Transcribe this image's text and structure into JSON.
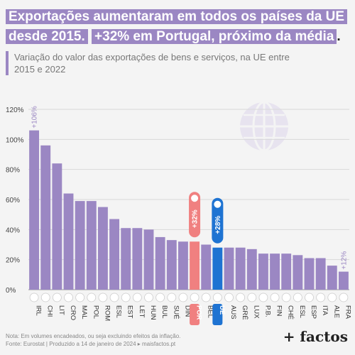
{
  "title_part1": "Exportações aumentaram em todos os países da UE desde 2015.",
  "title_part2": "+32% em Portugal, próximo da média",
  "title_end": ".",
  "subtitle": "Variação do valor das exportações de bens e serviços, na UE entre 2015 e 2022",
  "footer_line1": "Nota: Em volumes encadeados, ou seja excluindo efeitos da inflação.",
  "footer_line2": "Fonte: Eurostat  |  Produzido a 14 de janeiro de 2024 ▸ maisfactos.pt",
  "brand": "+ factos",
  "colors": {
    "bar": "#9b87c3",
    "portugal": "#f08080",
    "eu": "#1e73d2",
    "grid": "#d9d9d9"
  },
  "chart_data": {
    "type": "bar",
    "categories": [
      "IRL",
      "CHI",
      "LIT",
      "CRO",
      "MAL",
      "POL",
      "ROM",
      "ESL",
      "EST",
      "LET",
      "HUN",
      "BUL",
      "SUÉ",
      "DIN",
      "POR",
      "BEL",
      "UE",
      "AUS",
      "GRÉ",
      "LUX",
      "P.B.",
      "FIN",
      "CHÉ",
      "ESL",
      "ESP",
      "ITA",
      "ALE",
      "FRA"
    ],
    "values": [
      106,
      96,
      84,
      64,
      59,
      59,
      55,
      47,
      41,
      41,
      40,
      35,
      33,
      32,
      32,
      30,
      28,
      28,
      28,
      27,
      24,
      24,
      24,
      23,
      21,
      21,
      16,
      12
    ],
    "ylim": [
      0,
      120
    ],
    "yticks": [
      "0%",
      "20%",
      "40%",
      "60%",
      "80%",
      "100%",
      "120%"
    ],
    "data_labels": {
      "IRL": "+106%",
      "POR": "+32%",
      "UE": "+28%",
      "FRA": "+12%"
    },
    "highlight": {
      "POR": "portugal",
      "UE": "eu"
    },
    "grid": true,
    "xlabel": "",
    "ylabel": ""
  }
}
